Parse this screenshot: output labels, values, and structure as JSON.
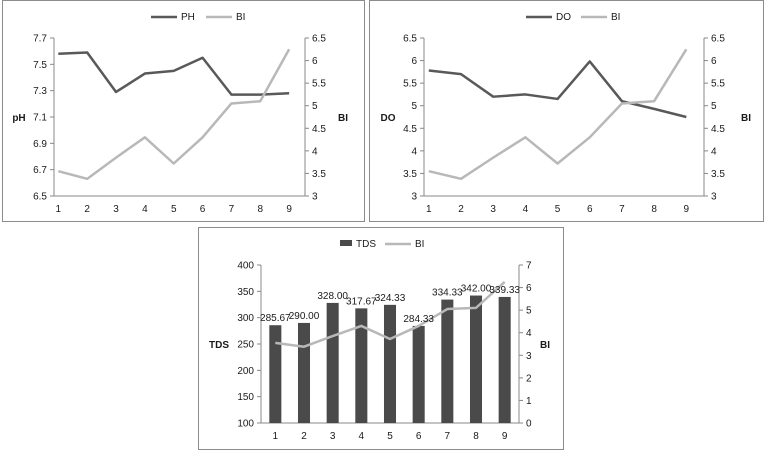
{
  "colors": {
    "series_dark": "#595959",
    "series_light": "#b8b8b8",
    "bar": "#4a4a4a",
    "axis": "#888888"
  },
  "chart_data": [
    {
      "id": "ph",
      "type": "line",
      "categories": [
        "1",
        "2",
        "3",
        "4",
        "5",
        "6",
        "7",
        "8",
        "9"
      ],
      "series": [
        {
          "name": "PH",
          "axis": "left",
          "values": [
            7.58,
            7.59,
            7.29,
            7.43,
            7.45,
            7.55,
            7.27,
            7.27,
            7.28
          ]
        },
        {
          "name": "BI",
          "axis": "right",
          "values": [
            3.55,
            3.38,
            3.85,
            4.3,
            3.72,
            4.3,
            5.05,
            5.1,
            6.25
          ]
        }
      ],
      "left_axis": {
        "label": "pH",
        "min": 6.5,
        "max": 7.7,
        "ticks": [
          "6.5",
          "6.7",
          "6.9",
          "7.1",
          "7.3",
          "7.5",
          "7.7"
        ]
      },
      "right_axis": {
        "label": "BI",
        "min": 3,
        "max": 6.5,
        "ticks": [
          "3",
          "3.5",
          "4",
          "4.5",
          "5",
          "5.5",
          "6",
          "6.5"
        ]
      },
      "legend": [
        "PH",
        "BI"
      ],
      "legend_position": "top"
    },
    {
      "id": "do",
      "type": "line",
      "categories": [
        "1",
        "2",
        "3",
        "4",
        "5",
        "6",
        "7",
        "8",
        "9"
      ],
      "series": [
        {
          "name": "DO",
          "axis": "left",
          "values": [
            5.78,
            5.7,
            5.2,
            5.25,
            5.15,
            5.98,
            5.1,
            4.93,
            4.75
          ]
        },
        {
          "name": "BI",
          "axis": "right",
          "values": [
            3.55,
            3.38,
            3.85,
            4.3,
            3.72,
            4.3,
            5.05,
            5.1,
            6.25
          ]
        }
      ],
      "left_axis": {
        "label": "DO",
        "min": 3,
        "max": 6.5,
        "ticks": [
          "3",
          "3.5",
          "4",
          "4.5",
          "5",
          "5.5",
          "6",
          "6.5"
        ]
      },
      "right_axis": {
        "label": "BI",
        "min": 3,
        "max": 6.5,
        "ticks": [
          "3",
          "3.5",
          "4",
          "4.5",
          "5",
          "5.5",
          "6",
          "6.5"
        ]
      },
      "legend": [
        "DO",
        "BI"
      ],
      "legend_position": "top"
    },
    {
      "id": "tds",
      "type": "bar+line",
      "categories": [
        "1",
        "2",
        "3",
        "4",
        "5",
        "6",
        "7",
        "8",
        "9"
      ],
      "series": [
        {
          "name": "TDS",
          "axis": "left",
          "kind": "bar",
          "values": [
            285.67,
            290.0,
            328.0,
            317.67,
            324.33,
            284.33,
            334.33,
            342.0,
            339.33
          ],
          "labels": [
            "285.67",
            "290.00",
            "328.00",
            "317.67",
            "324.33",
            "284.33",
            "334.33",
            "342.00",
            "339.33"
          ]
        },
        {
          "name": "BI",
          "axis": "right",
          "kind": "line",
          "values": [
            3.55,
            3.38,
            3.85,
            4.3,
            3.72,
            4.3,
            5.05,
            5.1,
            6.25
          ]
        }
      ],
      "left_axis": {
        "label": "TDS",
        "min": 100,
        "max": 400,
        "ticks": [
          "100",
          "150",
          "200",
          "250",
          "300",
          "350",
          "400"
        ]
      },
      "right_axis": {
        "label": "BI",
        "min": 0,
        "max": 7,
        "ticks": [
          "0",
          "1",
          "2",
          "3",
          "4",
          "5",
          "6",
          "7"
        ]
      },
      "legend": [
        "TDS",
        "BI"
      ],
      "legend_position": "top"
    }
  ]
}
